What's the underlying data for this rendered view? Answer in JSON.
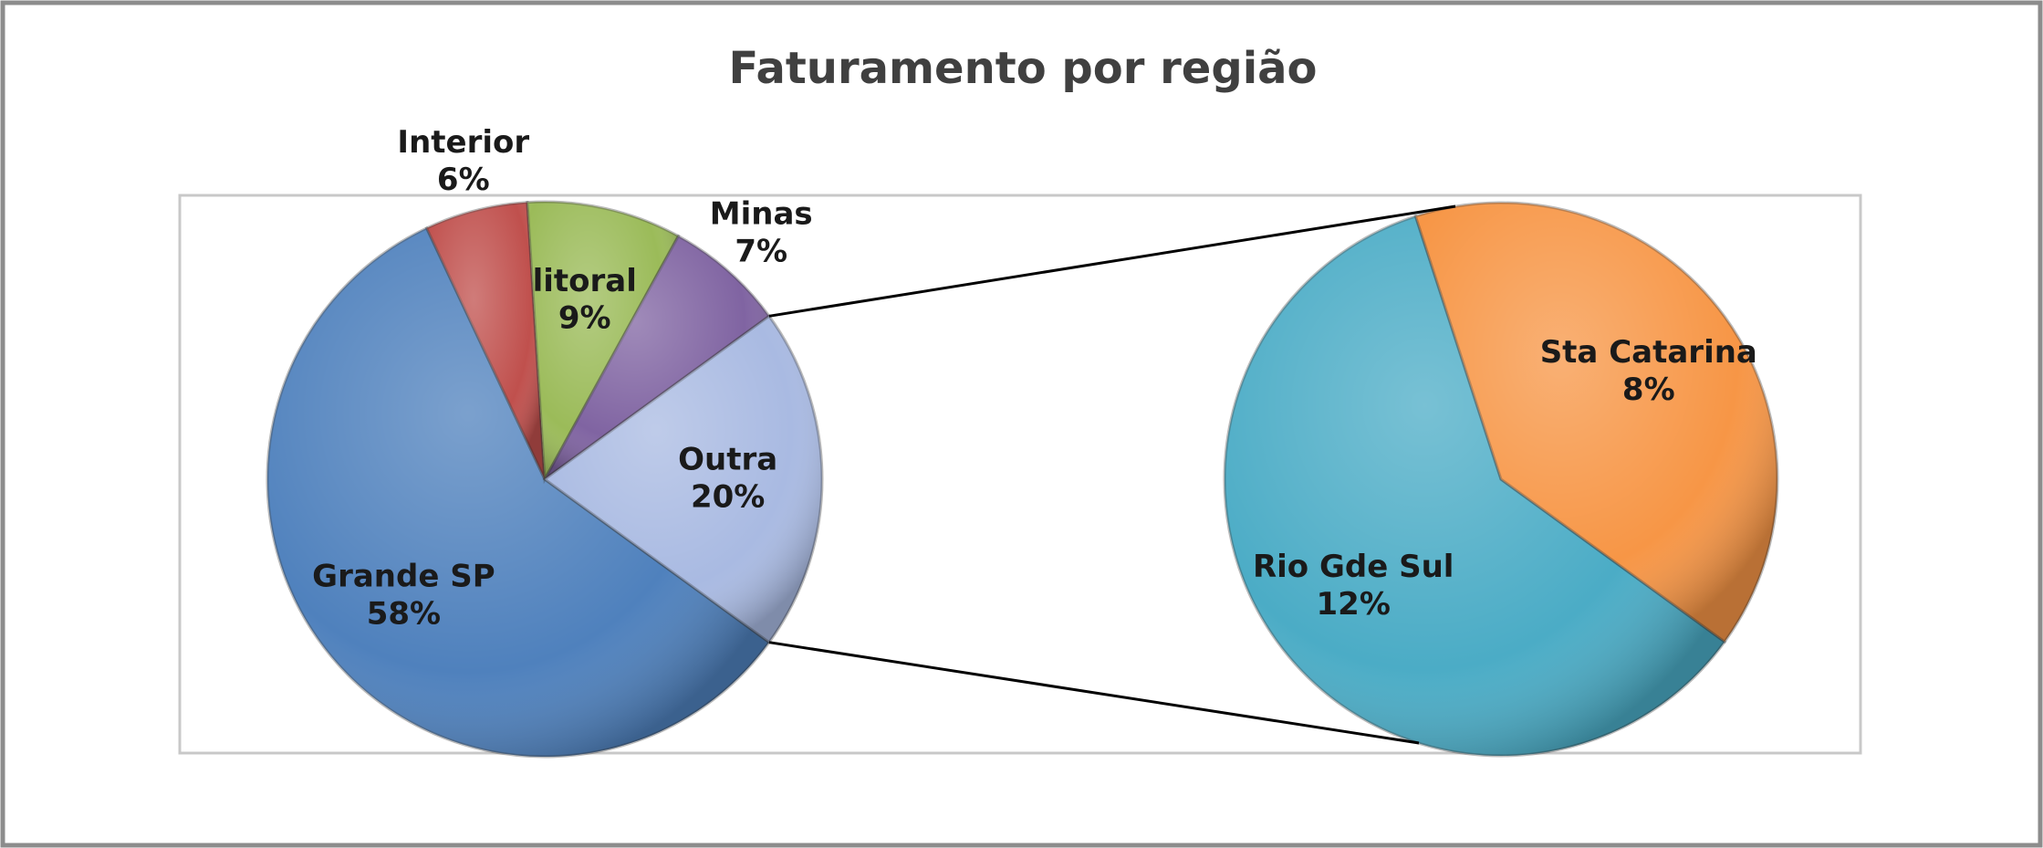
{
  "chart_data": {
    "type": "pie",
    "title": "Faturamento por região",
    "categories": [
      "Grande SP",
      "Interior",
      "litoral",
      "Minas",
      "Outra"
    ],
    "values": [
      58,
      6,
      9,
      7,
      20
    ],
    "value_labels": [
      "58%",
      "6%",
      "9%",
      "7%",
      "20%"
    ],
    "colors": [
      "#4f81bd",
      "#c0504d",
      "#9bbb59",
      "#8064a2",
      "#a9bae2"
    ],
    "secondary": {
      "categories": [
        "Rio Gde Sul",
        "Sta Catarina"
      ],
      "values": [
        12,
        8
      ],
      "value_labels": [
        "12%",
        "8%"
      ],
      "colors": [
        "#4bacc6",
        "#f79646"
      ]
    }
  }
}
